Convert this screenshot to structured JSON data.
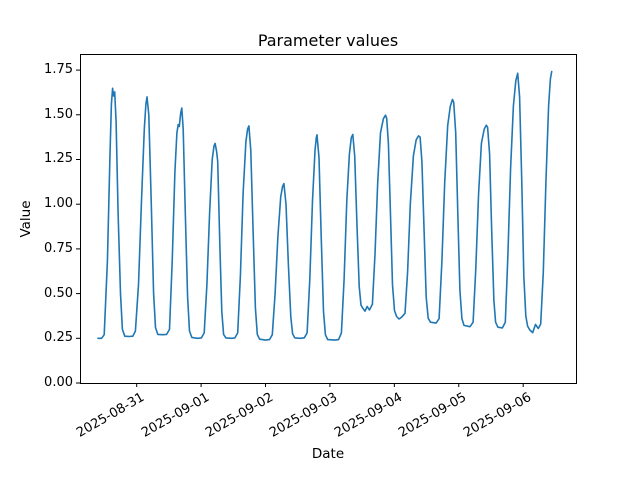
{
  "figure": {
    "title": "Parameter values"
  },
  "chart_data": {
    "type": "line",
    "title": "Parameter values",
    "xlabel": "Date",
    "ylabel": "Value",
    "grid": false,
    "legend": null,
    "line_color": "#1f77b4",
    "background_color": "#ffffff",
    "x_unit": "days since 2025-08-31 00:00",
    "x_tick_labels": [
      "2025-08-31",
      "2025-09-01",
      "2025-09-02",
      "2025-09-03",
      "2025-09-04",
      "2025-09-05",
      "2025-09-06"
    ],
    "x_tick_positions_days": [
      0,
      1,
      2,
      3,
      4,
      5,
      6
    ],
    "y_tick_labels": [
      "0.00",
      "0.25",
      "0.50",
      "0.75",
      "1.00",
      "1.25",
      "1.50",
      "1.75"
    ],
    "y_tick_values": [
      0,
      0.25,
      0.5,
      0.75,
      1.0,
      1.25,
      1.5,
      1.75
    ],
    "xlim_days": [
      -0.88,
      6.82
    ],
    "ylim": [
      0,
      1.84
    ],
    "series": [
      {
        "name": "Parameter",
        "points": [
          [
            -0.6,
            0.25
          ],
          [
            -0.545,
            0.25
          ],
          [
            -0.505,
            0.27
          ],
          [
            -0.455,
            0.68
          ],
          [
            -0.415,
            1.28
          ],
          [
            -0.392,
            1.56
          ],
          [
            -0.374,
            1.648
          ],
          [
            -0.358,
            1.605
          ],
          [
            -0.342,
            1.628
          ],
          [
            -0.32,
            1.46
          ],
          [
            -0.288,
            0.95
          ],
          [
            -0.252,
            0.5
          ],
          [
            -0.222,
            0.3
          ],
          [
            -0.185,
            0.262
          ],
          [
            -0.12,
            0.26
          ],
          [
            -0.06,
            0.262
          ],
          [
            -0.02,
            0.29
          ],
          [
            0.028,
            0.55
          ],
          [
            0.075,
            1.02
          ],
          [
            0.118,
            1.42
          ],
          [
            0.143,
            1.56
          ],
          [
            0.16,
            1.6
          ],
          [
            0.188,
            1.5
          ],
          [
            0.225,
            1.02
          ],
          [
            0.262,
            0.5
          ],
          [
            0.292,
            0.31
          ],
          [
            0.328,
            0.272
          ],
          [
            0.4,
            0.27
          ],
          [
            0.465,
            0.272
          ],
          [
            0.51,
            0.3
          ],
          [
            0.552,
            0.68
          ],
          [
            0.594,
            1.18
          ],
          [
            0.625,
            1.4
          ],
          [
            0.645,
            1.445
          ],
          [
            0.662,
            1.435
          ],
          [
            0.684,
            1.51
          ],
          [
            0.7,
            1.538
          ],
          [
            0.722,
            1.42
          ],
          [
            0.755,
            0.95
          ],
          [
            0.79,
            0.48
          ],
          [
            0.82,
            0.29
          ],
          [
            0.856,
            0.255
          ],
          [
            0.94,
            0.25
          ],
          [
            1.005,
            0.252
          ],
          [
            1.048,
            0.28
          ],
          [
            1.09,
            0.55
          ],
          [
            1.132,
            0.95
          ],
          [
            1.172,
            1.25
          ],
          [
            1.2,
            1.325
          ],
          [
            1.218,
            1.34
          ],
          [
            1.24,
            1.295
          ],
          [
            1.258,
            1.24
          ],
          [
            1.29,
            0.78
          ],
          [
            1.322,
            0.4
          ],
          [
            1.35,
            0.272
          ],
          [
            1.385,
            0.252
          ],
          [
            1.47,
            0.25
          ],
          [
            1.525,
            0.252
          ],
          [
            1.568,
            0.28
          ],
          [
            1.61,
            0.6
          ],
          [
            1.652,
            1.06
          ],
          [
            1.695,
            1.35
          ],
          [
            1.722,
            1.42
          ],
          [
            1.742,
            1.438
          ],
          [
            1.772,
            1.3
          ],
          [
            1.808,
            0.85
          ],
          [
            1.843,
            0.42
          ],
          [
            1.872,
            0.272
          ],
          [
            1.908,
            0.245
          ],
          [
            2.0,
            0.24
          ],
          [
            2.062,
            0.243
          ],
          [
            2.105,
            0.27
          ],
          [
            2.148,
            0.5
          ],
          [
            2.192,
            0.82
          ],
          [
            2.235,
            1.04
          ],
          [
            2.265,
            1.1
          ],
          [
            2.285,
            1.115
          ],
          [
            2.318,
            1.0
          ],
          [
            2.355,
            0.66
          ],
          [
            2.392,
            0.37
          ],
          [
            2.42,
            0.275
          ],
          [
            2.455,
            0.252
          ],
          [
            2.545,
            0.25
          ],
          [
            2.602,
            0.253
          ],
          [
            2.645,
            0.28
          ],
          [
            2.688,
            0.58
          ],
          [
            2.73,
            1.02
          ],
          [
            2.768,
            1.3
          ],
          [
            2.788,
            1.372
          ],
          [
            2.8,
            1.388
          ],
          [
            2.83,
            1.26
          ],
          [
            2.865,
            0.82
          ],
          [
            2.9,
            0.4
          ],
          [
            2.93,
            0.27
          ],
          [
            2.965,
            0.243
          ],
          [
            3.075,
            0.24
          ],
          [
            3.135,
            0.243
          ],
          [
            3.178,
            0.28
          ],
          [
            3.22,
            0.58
          ],
          [
            3.262,
            1.02
          ],
          [
            3.302,
            1.28
          ],
          [
            3.332,
            1.372
          ],
          [
            3.355,
            1.39
          ],
          [
            3.385,
            1.27
          ],
          [
            3.42,
            0.88
          ],
          [
            3.455,
            0.54
          ],
          [
            3.482,
            0.435
          ],
          [
            3.512,
            0.418
          ],
          [
            3.545,
            0.402
          ],
          [
            3.578,
            0.428
          ],
          [
            3.612,
            0.408
          ],
          [
            3.66,
            0.44
          ],
          [
            3.7,
            0.72
          ],
          [
            3.742,
            1.12
          ],
          [
            3.785,
            1.4
          ],
          [
            3.83,
            1.478
          ],
          [
            3.862,
            1.498
          ],
          [
            3.882,
            1.48
          ],
          [
            3.908,
            1.34
          ],
          [
            3.94,
            0.94
          ],
          [
            3.972,
            0.55
          ],
          [
            4.002,
            0.405
          ],
          [
            4.035,
            0.372
          ],
          [
            4.072,
            0.358
          ],
          [
            4.112,
            0.368
          ],
          [
            4.165,
            0.39
          ],
          [
            4.205,
            0.62
          ],
          [
            4.248,
            1.0
          ],
          [
            4.295,
            1.27
          ],
          [
            4.34,
            1.36
          ],
          [
            4.375,
            1.382
          ],
          [
            4.4,
            1.375
          ],
          [
            4.428,
            1.24
          ],
          [
            4.462,
            0.85
          ],
          [
            4.495,
            0.48
          ],
          [
            4.525,
            0.362
          ],
          [
            4.562,
            0.34
          ],
          [
            4.648,
            0.335
          ],
          [
            4.695,
            0.36
          ],
          [
            4.738,
            0.68
          ],
          [
            4.782,
            1.12
          ],
          [
            4.828,
            1.44
          ],
          [
            4.868,
            1.548
          ],
          [
            4.902,
            1.586
          ],
          [
            4.922,
            1.57
          ],
          [
            4.952,
            1.4
          ],
          [
            4.985,
            0.95
          ],
          [
            5.018,
            0.52
          ],
          [
            5.048,
            0.36
          ],
          [
            5.082,
            0.322
          ],
          [
            5.175,
            0.315
          ],
          [
            5.222,
            0.34
          ],
          [
            5.265,
            0.64
          ],
          [
            5.308,
            1.06
          ],
          [
            5.352,
            1.34
          ],
          [
            5.395,
            1.42
          ],
          [
            5.428,
            1.442
          ],
          [
            5.448,
            1.43
          ],
          [
            5.478,
            1.28
          ],
          [
            5.512,
            0.85
          ],
          [
            5.545,
            0.46
          ],
          [
            5.572,
            0.34
          ],
          [
            5.608,
            0.312
          ],
          [
            5.678,
            0.308
          ],
          [
            5.722,
            0.34
          ],
          [
            5.762,
            0.7
          ],
          [
            5.805,
            1.2
          ],
          [
            5.848,
            1.55
          ],
          [
            5.885,
            1.69
          ],
          [
            5.915,
            1.732
          ],
          [
            5.945,
            1.6
          ],
          [
            5.978,
            1.12
          ],
          [
            6.01,
            0.6
          ],
          [
            6.04,
            0.375
          ],
          [
            6.068,
            0.318
          ],
          [
            6.105,
            0.296
          ],
          [
            6.148,
            0.282
          ],
          [
            6.192,
            0.328
          ],
          [
            6.235,
            0.305
          ],
          [
            6.272,
            0.33
          ],
          [
            6.312,
            0.62
          ],
          [
            6.352,
            1.12
          ],
          [
            6.395,
            1.55
          ],
          [
            6.422,
            1.7
          ],
          [
            6.442,
            1.742
          ]
        ]
      }
    ]
  }
}
